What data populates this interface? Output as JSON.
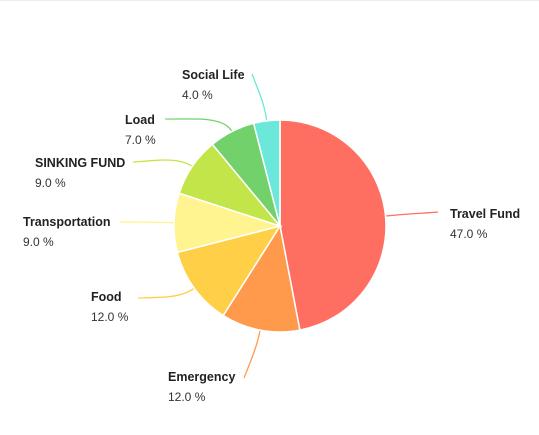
{
  "chart_data": {
    "type": "pie",
    "value_suffix": " %",
    "slices": [
      {
        "label": "Travel Fund",
        "value": 47.0,
        "display": "47.0",
        "color": "#ff6f61"
      },
      {
        "label": "Emergency",
        "value": 12.0,
        "display": "12.0",
        "color": "#ff9a4d"
      },
      {
        "label": "Food",
        "value": 12.0,
        "display": "12.0",
        "color": "#ffcf48"
      },
      {
        "label": "Transportation",
        "value": 9.0,
        "display": "9.0",
        "color": "#fff48f"
      },
      {
        "label": "SINKING FUND",
        "value": 9.0,
        "display": "9.0",
        "color": "#c2e64a"
      },
      {
        "label": "Load",
        "value": 7.0,
        "display": "7.0",
        "color": "#72d16a"
      },
      {
        "label": "Social Life",
        "value": 4.0,
        "display": "4.0",
        "color": "#6be8d9"
      }
    ],
    "legend": "none",
    "labels": "outside-with-leader-lines"
  }
}
